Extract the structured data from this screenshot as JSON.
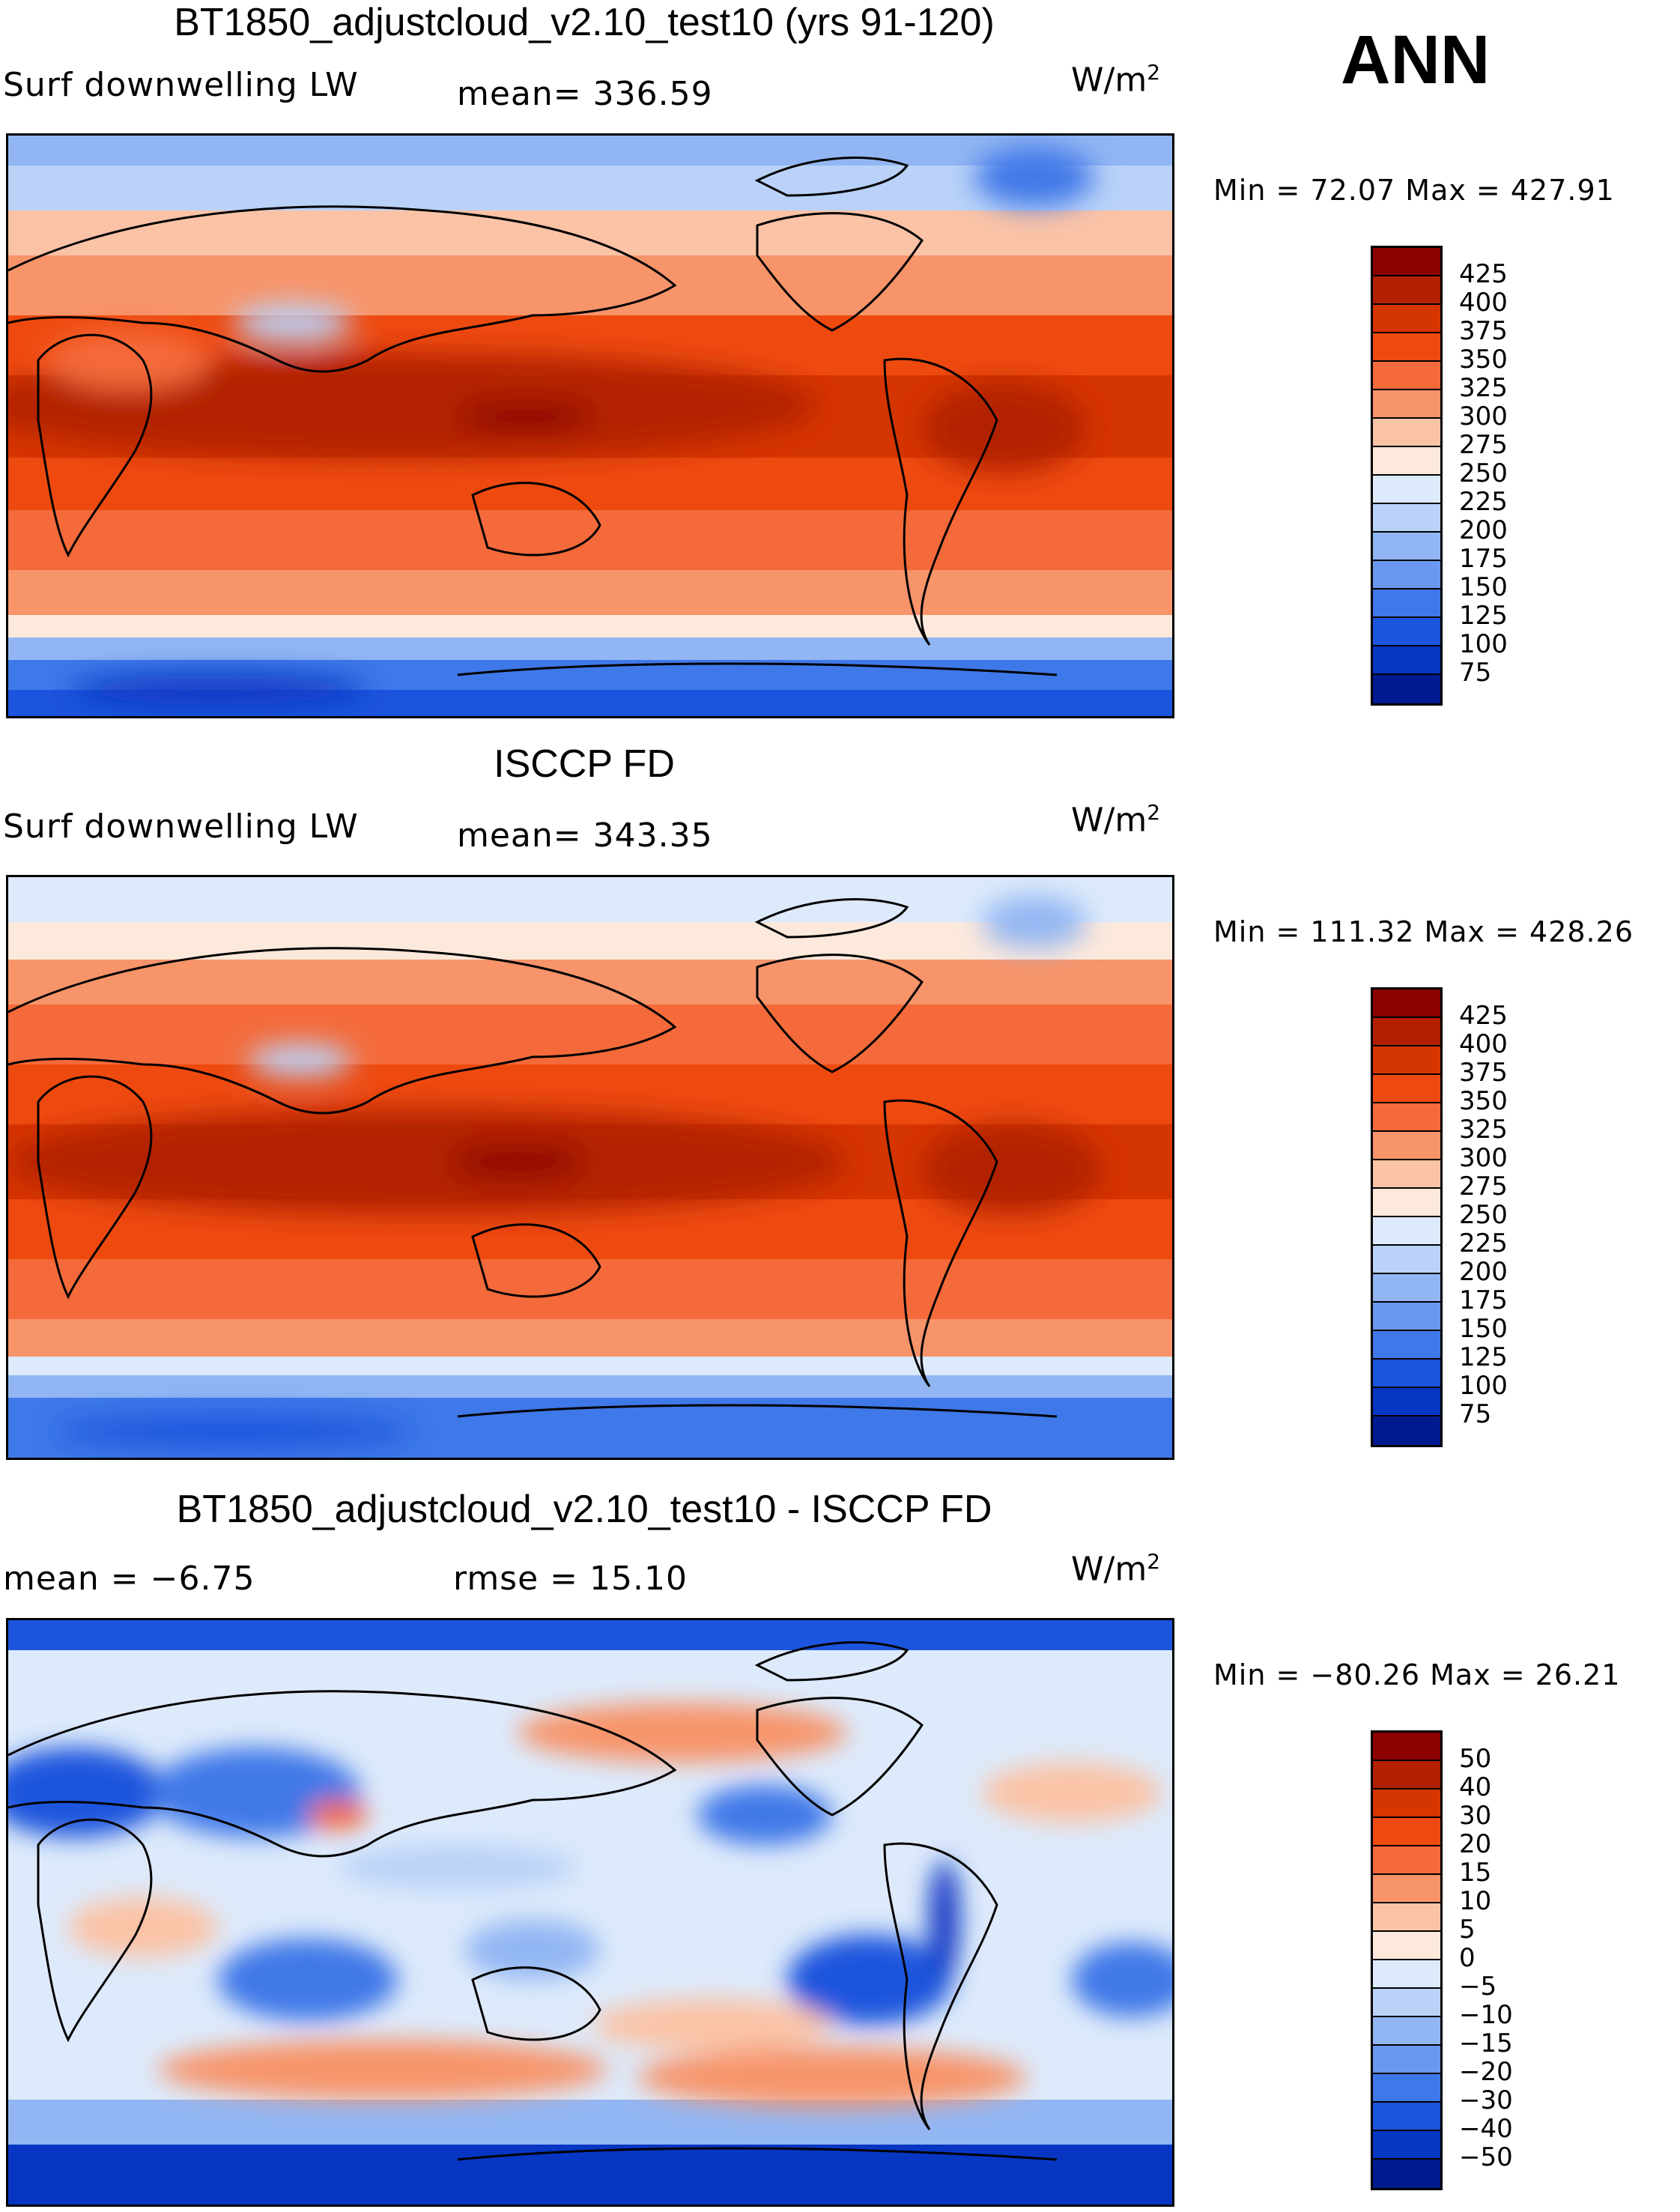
{
  "season": "ANN",
  "units_base": "W/m",
  "units_exp": "2",
  "panels": [
    {
      "title": "BT1850_adjustcloud_v2.10_test10 (yrs 91-120)",
      "left_label": "Surf downwelling LW",
      "mid_label": "mean=  336.59",
      "minmax": "Min =   72.07 Max = 427.91",
      "colorbar": {
        "colors": [
          "#8b0000",
          "#b22000",
          "#d53500",
          "#ee4a10",
          "#f46a3a",
          "#f7946a",
          "#fbc3a6",
          "#fde9dc",
          "#ddeafb",
          "#bad2f8",
          "#92b6f3",
          "#6a98ee",
          "#3f78e8",
          "#1c55dd",
          "#0736c2",
          "#001b8f"
        ],
        "labels": [
          "425",
          "400",
          "375",
          "350",
          "325",
          "300",
          "275",
          "250",
          "225",
          "200",
          "175",
          "150",
          "125",
          "100",
          "75"
        ]
      }
    },
    {
      "title": "ISCCP FD",
      "left_label": "Surf downwelling LW",
      "mid_label": "mean=  343.35",
      "minmax": "Min = 111.32 Max = 428.26",
      "colorbar": {
        "colors": [
          "#8b0000",
          "#b22000",
          "#d53500",
          "#ee4a10",
          "#f46a3a",
          "#f7946a",
          "#fbc3a6",
          "#fde9dc",
          "#ddeafb",
          "#bad2f8",
          "#92b6f3",
          "#6a98ee",
          "#3f78e8",
          "#1c55dd",
          "#0736c2",
          "#001b8f"
        ],
        "labels": [
          "425",
          "400",
          "375",
          "350",
          "325",
          "300",
          "275",
          "250",
          "225",
          "200",
          "175",
          "150",
          "125",
          "100",
          "75"
        ]
      }
    },
    {
      "title": "BT1850_adjustcloud_v2.10_test10 - ISCCP FD",
      "left_label": "mean =   −6.75",
      "mid_label": "rmse =   15.10",
      "minmax": "Min = −80.26 Max =  26.21",
      "colorbar": {
        "colors": [
          "#8b0000",
          "#b22000",
          "#d53500",
          "#ee4a10",
          "#f46a3a",
          "#f7946a",
          "#fbc3a6",
          "#fde9dc",
          "#ddeafb",
          "#bad2f8",
          "#92b6f3",
          "#6a98ee",
          "#3f78e8",
          "#1c55dd",
          "#0736c2",
          "#001b8f"
        ],
        "labels": [
          "50",
          "40",
          "30",
          "20",
          "15",
          "10",
          "5",
          "0",
          "−5",
          "−10",
          "−15",
          "−20",
          "−30",
          "−40",
          "−50"
        ]
      }
    }
  ]
}
